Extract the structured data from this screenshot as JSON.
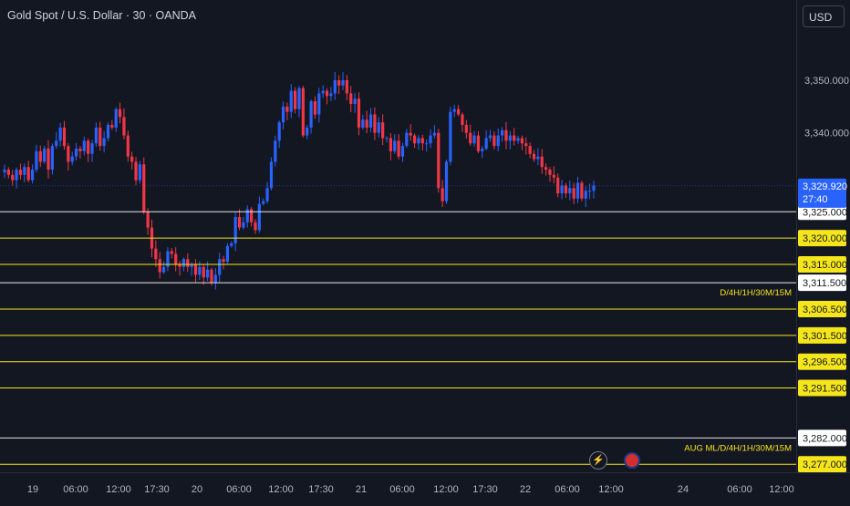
{
  "header": {
    "title": "Gold Spot / U.S. Dollar · 30 · OANDA",
    "currency_button": "USD"
  },
  "colors": {
    "background": "#131722",
    "up": "#2962ff",
    "down": "#f23645",
    "level_yellow": "#f5e51b",
    "level_white": "#e6e6e6"
  },
  "chart_data": {
    "type": "candlestick",
    "symbol": "Gold Spot / U.S. Dollar",
    "timeframe": "30",
    "source": "OANDA",
    "ylim": [
      3272,
      3358
    ],
    "y_ticks": [
      "3,350.000",
      "3,340.000"
    ],
    "x_ticks": [
      "19",
      "06:00",
      "12:00",
      "17:30",
      "20",
      "06:00",
      "12:00",
      "17:30",
      "21",
      "06:00",
      "12:00",
      "17:30",
      "22",
      "06:00",
      "12:00",
      "24",
      "06:00",
      "12:00"
    ],
    "last_price": "3,329.920",
    "countdown": "27:40",
    "levels": [
      {
        "price": 3325.0,
        "label": "3,325.000",
        "color": "white"
      },
      {
        "price": 3320.0,
        "label": "3,320.000",
        "color": "yellow"
      },
      {
        "price": 3315.0,
        "label": "3,315.000",
        "color": "yellow"
      },
      {
        "price": 3311.5,
        "label": "3,311.500",
        "color": "white",
        "note": "D/4H/1H/30M/15M"
      },
      {
        "price": 3306.5,
        "label": "3,306.500",
        "color": "yellow"
      },
      {
        "price": 3301.5,
        "label": "3,301.500",
        "color": "yellow"
      },
      {
        "price": 3296.5,
        "label": "3,296.500",
        "color": "yellow"
      },
      {
        "price": 3291.5,
        "label": "3,291.500",
        "color": "yellow"
      },
      {
        "price": 3282.0,
        "label": "3,282.000",
        "color": "white",
        "note": "AUG ML/D/4H/1H/30M/15M"
      },
      {
        "price": 3277.0,
        "label": "3,277.000",
        "color": "yellow"
      }
    ],
    "closes": [
      3333.0,
      3332.0,
      3331.0,
      3333.0,
      3332.0,
      3333.5,
      3331.0,
      3333.0,
      3336.5,
      3334.5,
      3337.0,
      3333.0,
      3337.5,
      3338.5,
      3341.0,
      3337.5,
      3334.5,
      3335.5,
      3337.0,
      3336.5,
      3338.5,
      3336.0,
      3338.0,
      3341.0,
      3337.5,
      3339.0,
      3341.5,
      3341.0,
      3344.5,
      3343.0,
      3339.5,
      3335.5,
      3334.5,
      3331.0,
      3334.0,
      3325.0,
      3322.0,
      3318.0,
      3316.0,
      3313.5,
      3314.5,
      3317.5,
      3317.0,
      3315.0,
      3314.5,
      3316.0,
      3314.5,
      3315.0,
      3313.0,
      3314.5,
      3312.5,
      3314.0,
      3311.5,
      3313.0,
      3316.0,
      3315.5,
      3318.5,
      3319.0,
      3324.0,
      3322.0,
      3323.0,
      3325.5,
      3323.0,
      3321.5,
      3326.5,
      3327.0,
      3329.5,
      3334.5,
      3338.5,
      3342.0,
      3345.0,
      3344.0,
      3348.0,
      3344.5,
      3348.5,
      3339.5,
      3341.0,
      3346.0,
      3343.5,
      3347.5,
      3348.0,
      3347.0,
      3347.5,
      3350.0,
      3349.0,
      3350.0,
      3347.5,
      3345.5,
      3346.5,
      3341.0,
      3342.5,
      3341.0,
      3343.5,
      3340.0,
      3342.0,
      3339.0,
      3339.0,
      3336.5,
      3338.5,
      3335.5,
      3337.5,
      3340.0,
      3339.5,
      3338.0,
      3339.0,
      3338.0,
      3338.0,
      3339.5,
      3340.0,
      3329.5,
      3327.0,
      3334.5,
      3344.0,
      3344.5,
      3343.5,
      3341.5,
      3340.0,
      3338.0,
      3339.5,
      3336.5,
      3337.0,
      3339.0,
      3339.5,
      3337.5,
      3339.5,
      3340.5,
      3338.5,
      3339.5,
      3338.5,
      3339.0,
      3338.0,
      3337.5,
      3336.0,
      3335.0,
      3335.5,
      3333.5,
      3333.0,
      3332.0,
      3331.5,
      3328.5,
      3330.0,
      3328.5,
      3329.5,
      3327.5,
      3330.5,
      3327.5,
      3329.0,
      3329.0,
      3330.0
    ]
  }
}
